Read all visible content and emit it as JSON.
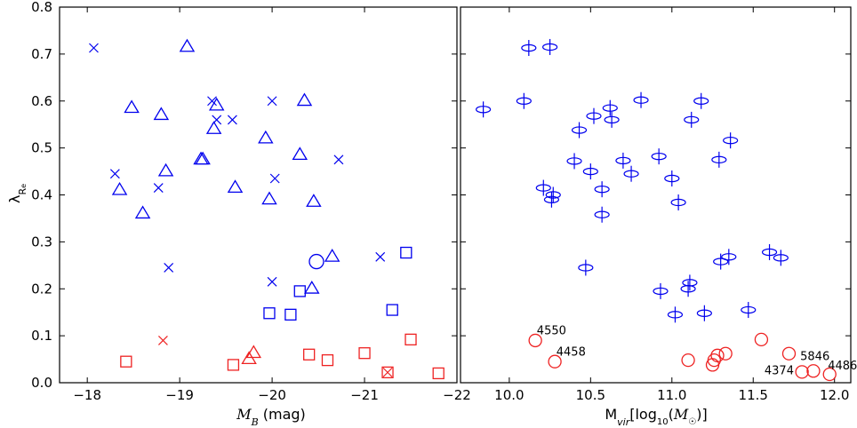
{
  "colors": {
    "blue": "#0000ee",
    "red": "#ee2222",
    "axis": "#000000"
  },
  "chart_data": [
    {
      "type": "scatter",
      "xlabel": "M_B (mag)",
      "ylabel": "λ_Re",
      "xlim": [
        -17.7,
        -22
      ],
      "ylim": [
        0,
        0.8
      ],
      "xticks": [
        -18,
        -19,
        -20,
        -21,
        -22
      ],
      "xtick_labels": [
        "−18",
        "−19",
        "−20",
        "−21",
        "−22"
      ],
      "yticks": [
        0.0,
        0.1,
        0.2,
        0.3,
        0.4,
        0.5,
        0.6,
        0.7,
        0.8
      ],
      "ytick_labels": [
        "0.0",
        "0.1",
        "0.2",
        "0.3",
        "0.4",
        "0.5",
        "0.6",
        "0.7",
        "0.8"
      ],
      "grid": false,
      "series": [
        {
          "marker": "triangle",
          "color": "blue",
          "points": [
            [
              -19.08,
              0.715
            ],
            [
              -18.48,
              0.585
            ],
            [
              -18.8,
              0.57
            ],
            [
              -19.4,
              0.59
            ],
            [
              -19.37,
              0.54
            ],
            [
              -19.25,
              0.475
            ],
            [
              -19.23,
              0.475
            ],
            [
              -18.85,
              0.45
            ],
            [
              -18.35,
              0.41
            ],
            [
              -18.6,
              0.36
            ],
            [
              -19.6,
              0.415
            ],
            [
              -19.93,
              0.52
            ],
            [
              -19.97,
              0.39
            ],
            [
              -20.3,
              0.485
            ],
            [
              -20.35,
              0.6
            ],
            [
              -20.45,
              0.385
            ],
            [
              -20.65,
              0.268
            ],
            [
              -20.43,
              0.2
            ]
          ]
        },
        {
          "marker": "x",
          "color": "blue",
          "points": [
            [
              -18.07,
              0.713
            ],
            [
              -19.35,
              0.6
            ],
            [
              -19.4,
              0.56
            ],
            [
              -19.57,
              0.56
            ],
            [
              -20.0,
              0.6
            ],
            [
              -18.3,
              0.445
            ],
            [
              -18.77,
              0.415
            ],
            [
              -20.03,
              0.435
            ],
            [
              -20.72,
              0.475
            ],
            [
              -18.88,
              0.245
            ],
            [
              -20.0,
              0.215
            ],
            [
              -21.17,
              0.268
            ]
          ]
        },
        {
          "marker": "square",
          "color": "blue",
          "points": [
            [
              -21.45,
              0.277
            ],
            [
              -20.3,
              0.195
            ],
            [
              -19.97,
              0.148
            ],
            [
              -20.2,
              0.145
            ],
            [
              -21.3,
              0.155
            ]
          ]
        },
        {
          "marker": "circle",
          "color": "blue",
          "points": [
            [
              -20.48,
              0.258
            ]
          ]
        },
        {
          "marker": "x",
          "color": "red",
          "points": [
            [
              -18.82,
              0.09
            ]
          ]
        },
        {
          "marker": "triangle",
          "color": "red",
          "points": [
            [
              -19.8,
              0.063
            ],
            [
              -19.75,
              0.05
            ]
          ]
        },
        {
          "marker": "square",
          "color": "red",
          "points": [
            [
              -18.42,
              0.045
            ],
            [
              -19.58,
              0.038
            ],
            [
              -20.4,
              0.06
            ],
            [
              -20.6,
              0.048
            ],
            [
              -21.0,
              0.063
            ],
            [
              -21.25,
              0.022
            ],
            [
              -21.5,
              0.092
            ],
            [
              -21.8,
              0.02
            ]
          ]
        },
        {
          "marker": "x",
          "color": "red",
          "points": [
            [
              -21.25,
              0.022
            ]
          ]
        }
      ]
    },
    {
      "type": "scatter",
      "xlabel": "M_vir[log10(M⊙)]",
      "ylabel": "",
      "xlim": [
        9.7,
        12.1
      ],
      "ylim": [
        0,
        0.8
      ],
      "xticks": [
        10.0,
        10.5,
        11.0,
        11.5,
        12.0
      ],
      "xtick_labels": [
        "10.0",
        "10.5",
        "11.0",
        "11.5",
        "12.0"
      ],
      "yticks": [
        0.0,
        0.1,
        0.2,
        0.3,
        0.4,
        0.5,
        0.6,
        0.7,
        0.8
      ],
      "grid": false,
      "series": [
        {
          "marker": "ellipse-error",
          "color": "blue",
          "points": [
            [
              10.12,
              0.713
            ],
            [
              10.25,
              0.715
            ],
            [
              9.84,
              0.582
            ],
            [
              10.09,
              0.6
            ],
            [
              10.43,
              0.538
            ],
            [
              10.52,
              0.568
            ],
            [
              10.62,
              0.585
            ],
            [
              10.63,
              0.56
            ],
            [
              10.81,
              0.602
            ],
            [
              11.12,
              0.56
            ],
            [
              11.18,
              0.6
            ],
            [
              10.4,
              0.472
            ],
            [
              10.5,
              0.45
            ],
            [
              10.7,
              0.473
            ],
            [
              10.75,
              0.445
            ],
            [
              10.92,
              0.482
            ],
            [
              11.0,
              0.435
            ],
            [
              11.29,
              0.475
            ],
            [
              11.36,
              0.516
            ],
            [
              10.21,
              0.415
            ],
            [
              10.27,
              0.4
            ],
            [
              10.26,
              0.39
            ],
            [
              10.57,
              0.412
            ],
            [
              10.57,
              0.358
            ],
            [
              11.04,
              0.384
            ],
            [
              10.47,
              0.245
            ],
            [
              10.93,
              0.195
            ],
            [
              11.11,
              0.213
            ],
            [
              11.1,
              0.2
            ],
            [
              11.02,
              0.145
            ],
            [
              11.2,
              0.148
            ],
            [
              11.3,
              0.258
            ],
            [
              11.35,
              0.268
            ],
            [
              11.6,
              0.278
            ],
            [
              11.67,
              0.266
            ],
            [
              11.47,
              0.155
            ]
          ]
        },
        {
          "marker": "circle",
          "color": "red",
          "points": [
            [
              10.16,
              0.09
            ],
            [
              10.28,
              0.045
            ],
            [
              11.1,
              0.048
            ],
            [
              11.25,
              0.038
            ],
            [
              11.26,
              0.048
            ],
            [
              11.28,
              0.058
            ],
            [
              11.33,
              0.062
            ],
            [
              11.55,
              0.092
            ],
            [
              11.72,
              0.062
            ],
            [
              11.8,
              0.023
            ],
            [
              11.87,
              0.025
            ],
            [
              11.97,
              0.018
            ]
          ]
        }
      ],
      "annotations": [
        {
          "text": "4550",
          "x": 10.18,
          "y": 0.103
        },
        {
          "text": "4458",
          "x": 10.3,
          "y": 0.058
        },
        {
          "text": "4374",
          "x": 11.58,
          "y": 0.018
        },
        {
          "text": "5846",
          "x": 11.8,
          "y": 0.048
        },
        {
          "text": "4486",
          "x": 11.97,
          "y": 0.028
        }
      ]
    }
  ]
}
